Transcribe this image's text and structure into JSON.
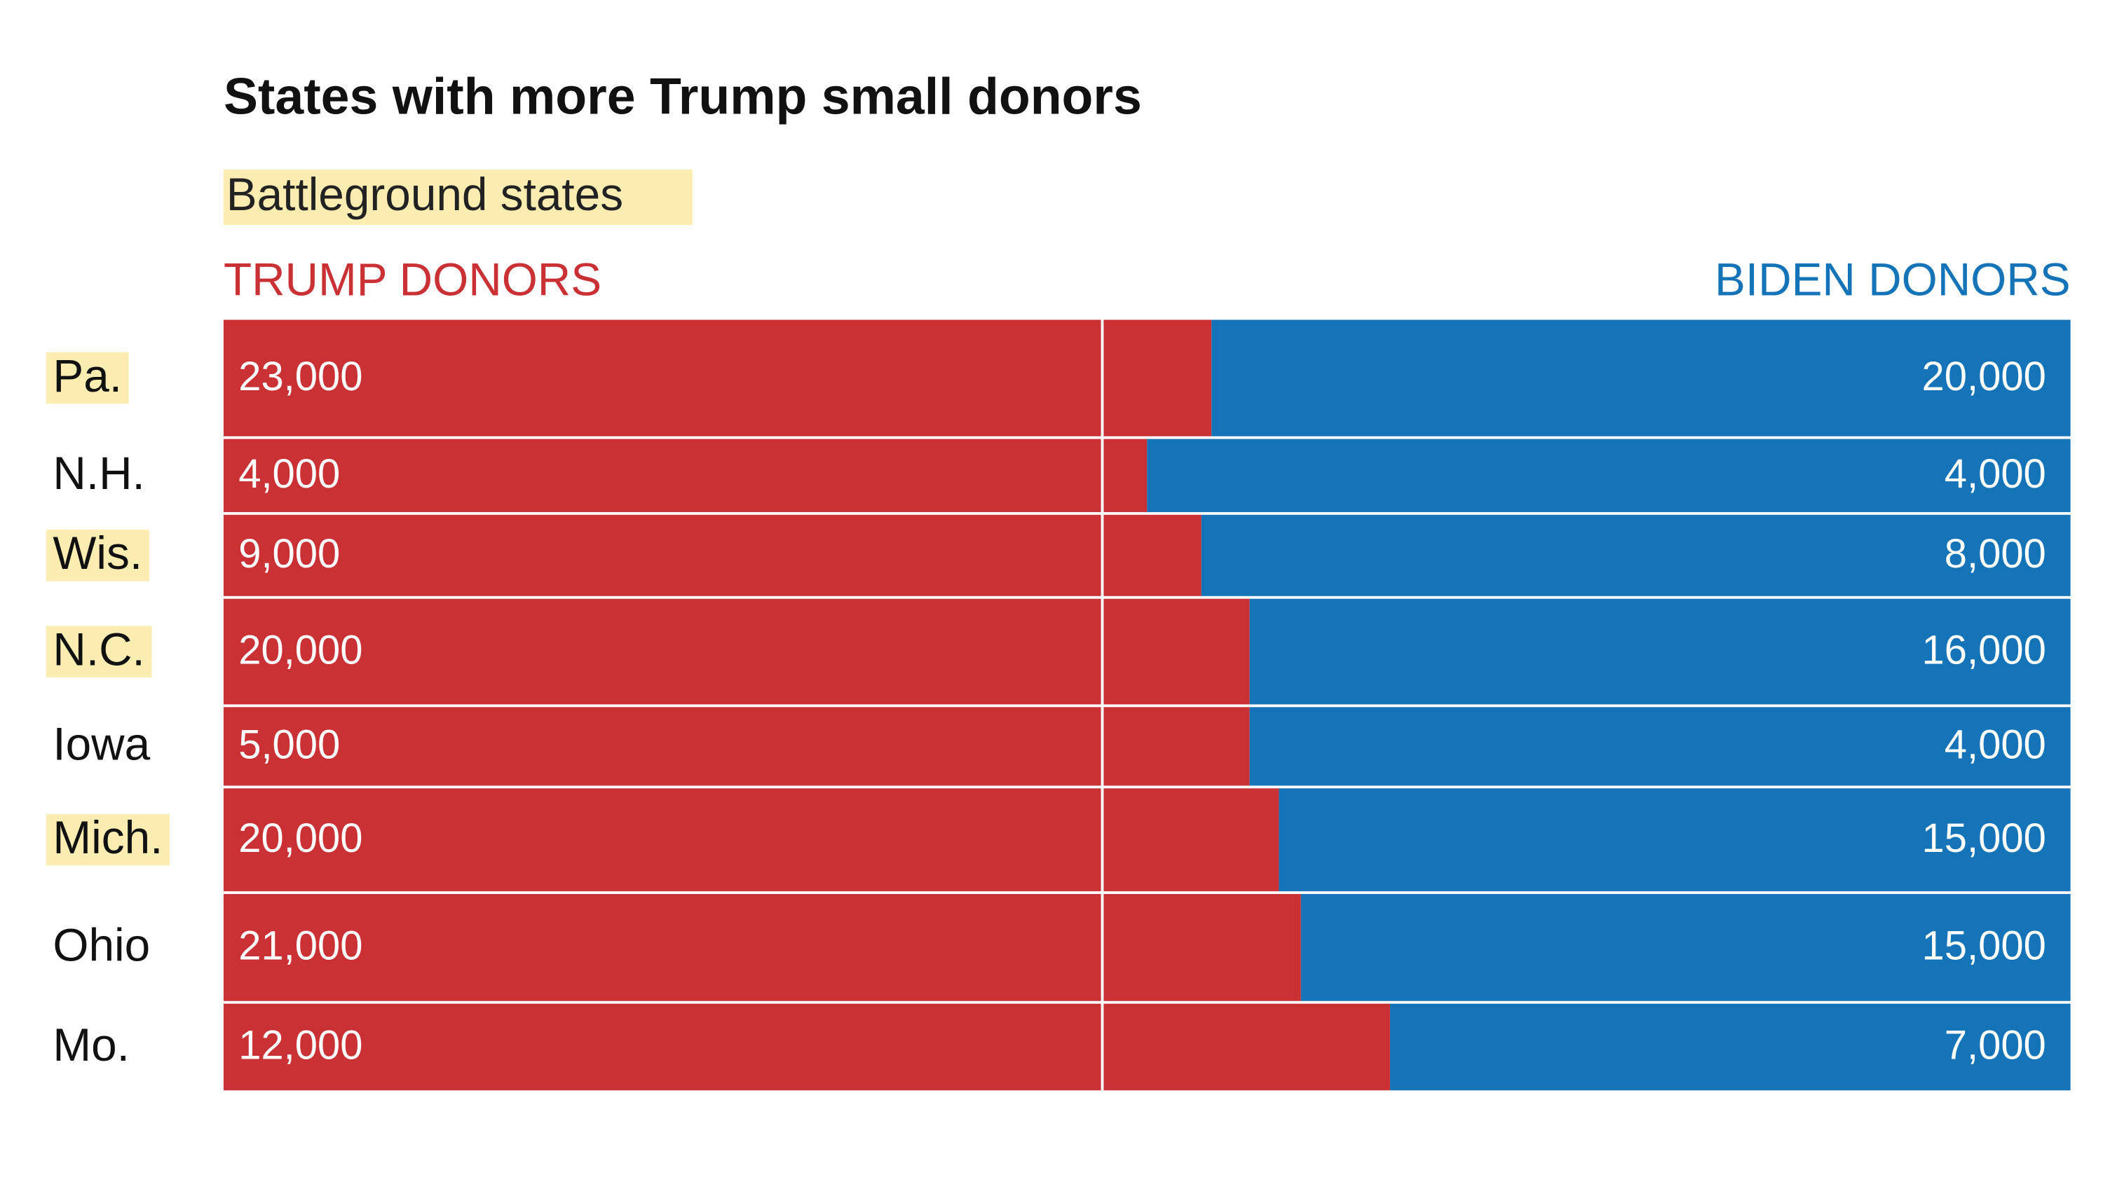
{
  "chart_data": {
    "type": "stacked_bar_100",
    "title": "States with more Trump small donors",
    "subtitle": "Battleground states",
    "highlight_color": "#fbedb1",
    "categories": [
      "Pa.",
      "N.H.",
      "Wis.",
      "N.C.",
      "Iowa",
      "Mich.",
      "Ohio",
      "Mo."
    ],
    "highlighted": [
      true,
      false,
      true,
      true,
      false,
      true,
      false,
      false
    ],
    "series": [
      {
        "name": "TRUMP DONORS",
        "color": "#c93135",
        "values": [
          23000,
          4000,
          9000,
          20000,
          5000,
          20000,
          21000,
          12000
        ],
        "value_labels": [
          "23,000",
          "4,000",
          "9,000",
          "20,000",
          "5,000",
          "20,000",
          "21,000",
          "12,000"
        ]
      },
      {
        "name": "BIDEN DONORS",
        "color": "#1574b8",
        "values": [
          20000,
          4000,
          8000,
          16000,
          4000,
          15000,
          15000,
          7000
        ],
        "value_labels": [
          "20,000",
          "4,000",
          "8,000",
          "16,000",
          "4,000",
          "15,000",
          "15,000",
          "7,000"
        ]
      }
    ]
  }
}
